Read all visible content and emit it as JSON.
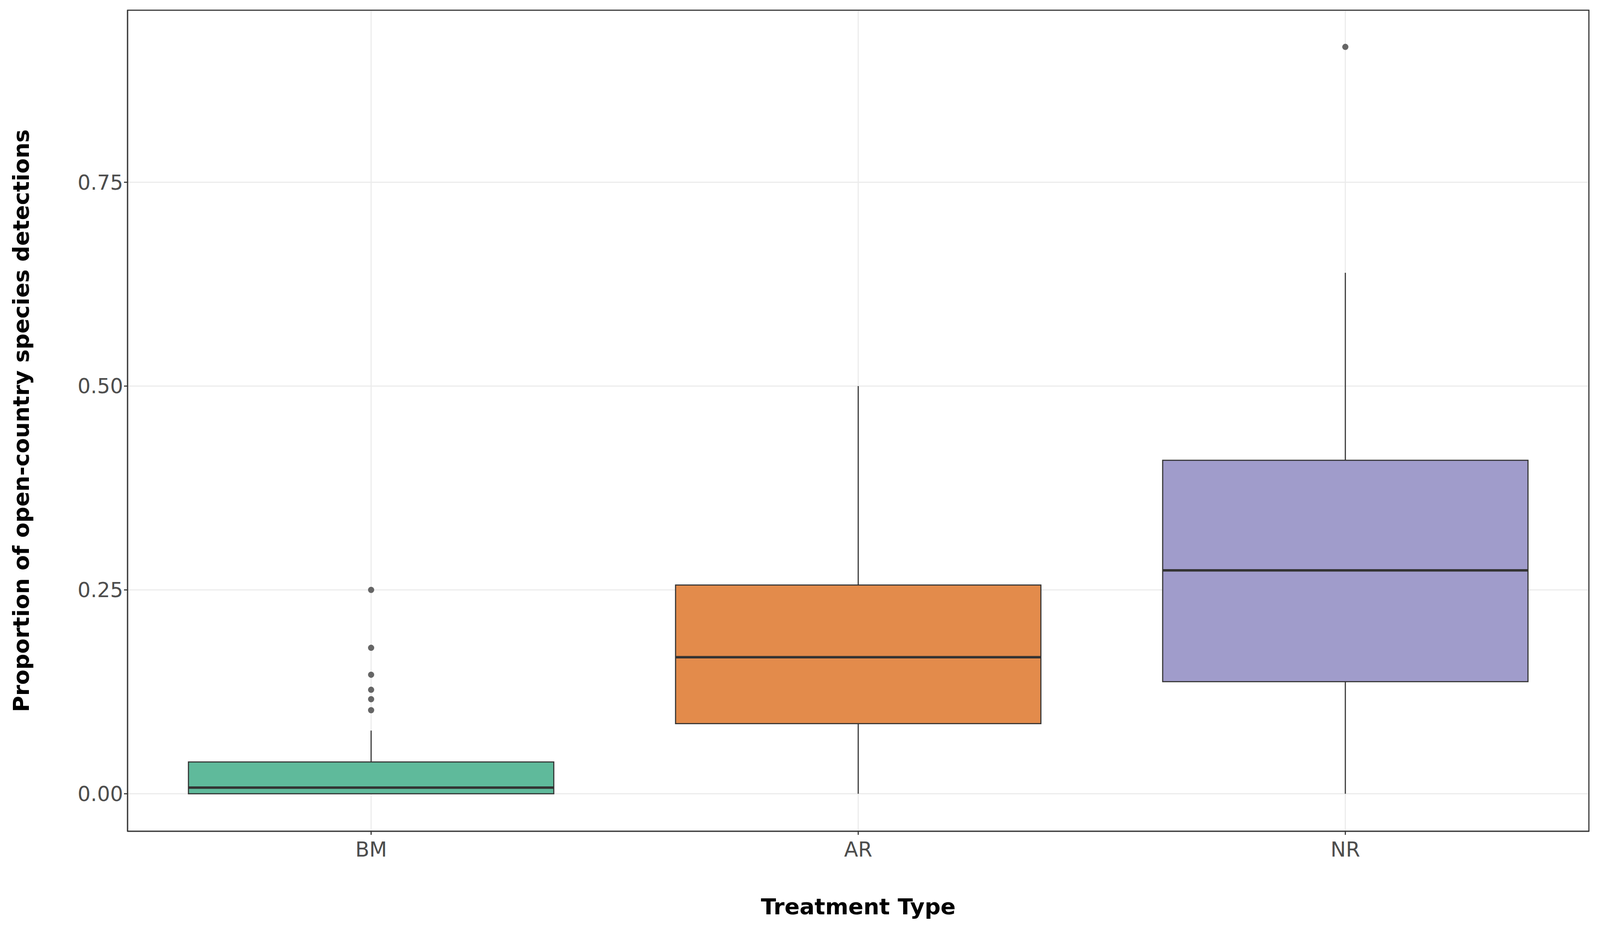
{
  "chart_data": {
    "type": "box",
    "x_label": "Treatment Type",
    "y_label": "Proportion of open-country species detections",
    "categories": [
      "BM",
      "AR",
      "NR"
    ],
    "colors": [
      "#5fba9b",
      "#e38b4b",
      "#a09ccb"
    ],
    "min": [
      0,
      0,
      0
    ],
    "q1": [
      0,
      0.086,
      0.1375
    ],
    "median": [
      0.0075,
      0.1675,
      0.274
    ],
    "q3": [
      0.039,
      0.256,
      0.409
    ],
    "max": [
      0.0775,
      0.5,
      0.639
    ],
    "outliers": [
      [
        0.25,
        0.179,
        0.146,
        0.1275,
        0.116,
        0.1025
      ],
      [],
      [
        0.916
      ]
    ],
    "ylim": [
      -0.046,
      0.961
    ],
    "yticks": [
      {
        "value": 0,
        "label": "0.00"
      },
      {
        "value": 0.25,
        "label": "0.25"
      },
      {
        "value": 0.5,
        "label": "0.50"
      },
      {
        "value": 0.75,
        "label": "0.75"
      }
    ],
    "grid": true
  }
}
